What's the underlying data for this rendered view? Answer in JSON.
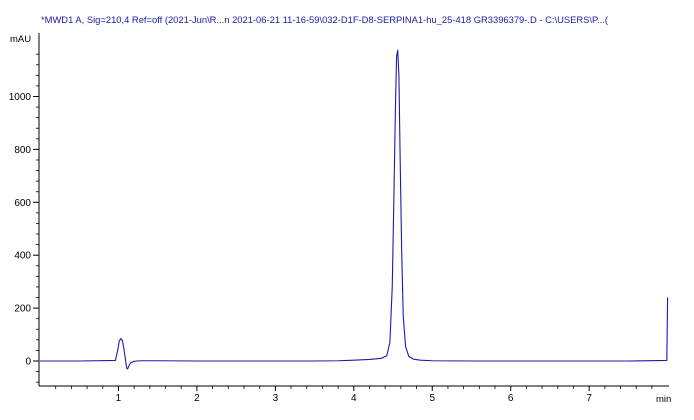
{
  "chart_data": {
    "type": "line",
    "title": "*MWD1 A, Sig=210,4 Ref=off (2021-Jun\\R...n 2021-06-21 11-16-59\\032-D1F-D8-SERPINA1-hu_25-418 GR3396379-.D - C:\\USERS\\P...(",
    "xlabel": "min",
    "ylabel": "mAU",
    "xlim": [
      0.0,
      8.0
    ],
    "ylim": [
      -100,
      1220
    ],
    "xticks": [
      1,
      2,
      3,
      4,
      5,
      6,
      7
    ],
    "yticks": [
      0,
      200,
      400,
      600,
      800,
      1000
    ],
    "x_tick_labels": [
      "1",
      "2",
      "3",
      "4",
      "5",
      "6",
      "7"
    ],
    "y_tick_labels": [
      "0",
      "200",
      "400",
      "600",
      "800",
      "1000"
    ],
    "grid": false,
    "legend": "none",
    "line_color": "#1c1caa",
    "series": [
      {
        "x": [
          0.0,
          0.5,
          0.96,
          0.99,
          1.01,
          1.03,
          1.05,
          1.07,
          1.09,
          1.1,
          1.11,
          1.12,
          1.14,
          1.16,
          1.19,
          1.23,
          1.3,
          1.5,
          2.0,
          2.5,
          3.0,
          3.5,
          3.8,
          4.0,
          4.2,
          4.35,
          4.42,
          4.46,
          4.49,
          4.51,
          4.53,
          4.545,
          4.56,
          4.575,
          4.59,
          4.61,
          4.63,
          4.66,
          4.7,
          4.76,
          4.85,
          5.0,
          5.5,
          6.0,
          6.5,
          7.0,
          7.5,
          7.99,
          8.0
        ],
        "y": [
          0,
          0,
          2,
          40,
          75,
          85,
          78,
          45,
          5,
          -18,
          -30,
          -28,
          -14,
          -6,
          -2,
          0,
          1,
          1,
          0,
          0,
          0,
          0,
          1,
          3,
          6,
          10,
          20,
          70,
          280,
          600,
          950,
          1150,
          1175,
          1080,
          780,
          420,
          170,
          55,
          18,
          7,
          3,
          1,
          0,
          0,
          0,
          0,
          0,
          2,
          240
        ]
      }
    ]
  }
}
